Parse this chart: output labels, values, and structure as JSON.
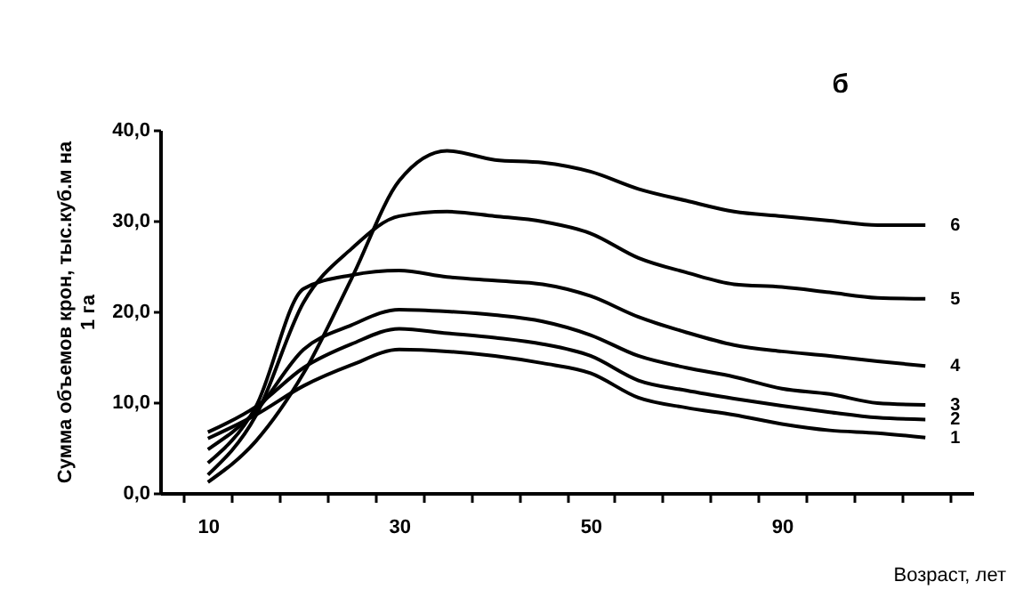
{
  "chart_data": {
    "type": "line",
    "title": "б",
    "xlabel": "Возраст, лет",
    "ylabel": "Сумма объемов крон, тыс.куб.м на 1 га",
    "categories": [
      "10",
      null,
      null,
      null,
      "30",
      null,
      null,
      null,
      "50",
      null,
      null,
      null,
      "90",
      null,
      null,
      null
    ],
    "series": [
      {
        "name": "1",
        "color": "#000000",
        "values": [
          6.0,
          8.6,
          11.8,
          14.1,
          15.8,
          15.6,
          15.1,
          14.3,
          13.2,
          10.5,
          9.4,
          8.6,
          7.6,
          6.9,
          6.6,
          6.1
        ]
      },
      {
        "name": "2",
        "color": "#000000",
        "values": [
          6.7,
          9.5,
          13.8,
          16.4,
          18.1,
          17.6,
          17.1,
          16.4,
          15.1,
          12.4,
          11.3,
          10.4,
          9.6,
          8.9,
          8.3,
          8.1
        ]
      },
      {
        "name": "3",
        "color": "#000000",
        "values": [
          4.8,
          9.0,
          15.8,
          18.5,
          20.2,
          20.0,
          19.6,
          18.9,
          17.4,
          15.1,
          13.8,
          12.8,
          11.5,
          10.9,
          9.9,
          9.7
        ]
      },
      {
        "name": "4",
        "color": "#000000",
        "values": [
          3.3,
          9.5,
          22.5,
          24.0,
          24.5,
          23.8,
          23.4,
          23.0,
          21.7,
          19.4,
          17.7,
          16.3,
          15.6,
          15.1,
          14.5,
          14.0
        ]
      },
      {
        "name": "5",
        "color": "#000000",
        "values": [
          2.0,
          8.5,
          21.0,
          26.9,
          30.5,
          31.0,
          30.5,
          29.9,
          28.6,
          25.9,
          24.3,
          23.0,
          22.7,
          22.1,
          21.5,
          21.4
        ]
      },
      {
        "name": "6",
        "color": "#000000",
        "values": [
          1.2,
          5.7,
          13.2,
          23.6,
          34.4,
          37.7,
          36.7,
          36.4,
          35.4,
          33.5,
          32.2,
          31.0,
          30.5,
          30.0,
          29.5,
          29.5
        ]
      }
    ],
    "ylim": [
      0,
      40
    ],
    "yticks": [
      {
        "value": 0,
        "label": "0,0"
      },
      {
        "value": 10,
        "label": "10,0"
      },
      {
        "value": 20,
        "label": "20,0"
      },
      {
        "value": 30,
        "label": "30,0"
      },
      {
        "value": 40,
        "label": "40,0"
      }
    ],
    "grid": false,
    "legend": false,
    "marker": "none",
    "line_style": "solid"
  }
}
